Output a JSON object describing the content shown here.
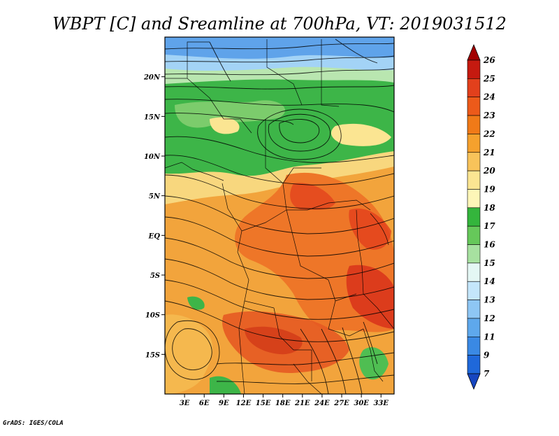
{
  "chart_data": {
    "type": "heatmap",
    "title": "WBPT [C] and Sreamline at 700hPa, VT: 2019031512",
    "variable": "WBPT",
    "units": "C",
    "level": "700hPa",
    "valid_time": "2019031512",
    "overlay": "streamlines",
    "region": {
      "lon_range": [
        0,
        35
      ],
      "lat_range": [
        -20,
        25
      ]
    },
    "x_ticks": [
      "3E",
      "6E",
      "9E",
      "12E",
      "15E",
      "18E",
      "21E",
      "24E",
      "27E",
      "30E",
      "33E"
    ],
    "x_tick_values": [
      3,
      6,
      9,
      12,
      15,
      18,
      21,
      24,
      27,
      30,
      33
    ],
    "y_ticks": [
      "20N",
      "15N",
      "10N",
      "5N",
      "EQ",
      "5S",
      "10S",
      "15S"
    ],
    "y_tick_values": [
      20,
      15,
      10,
      5,
      0,
      -5,
      -10,
      -15
    ],
    "colorbar": {
      "labels": [
        "26",
        "25",
        "24",
        "23",
        "22",
        "21",
        "20",
        "19",
        "18",
        "17",
        "16",
        "15",
        "14",
        "13",
        "12",
        "11",
        "9",
        "7"
      ],
      "colors": [
        "#a20000",
        "#c51a10",
        "#e2401c",
        "#ec5a1a",
        "#f07a18",
        "#f5a12d",
        "#f8c35a",
        "#fbe592",
        "#fdf6b8",
        "#34b53c",
        "#66c85a",
        "#a7e1a0",
        "#e4f7f4",
        "#c4e6fb",
        "#8ec6f4",
        "#5ea8ec",
        "#3a89e4",
        "#1f68da",
        "#1646c0"
      ]
    }
  },
  "footer": {
    "credit": "GrADS: IGES/COLA"
  }
}
